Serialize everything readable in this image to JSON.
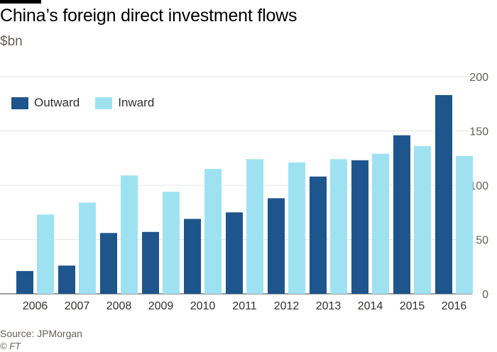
{
  "title": "China’s foreign direct investment flows",
  "subtitle": "$bn",
  "source": "Source: JPMorgan",
  "credit": "© FT",
  "colors": {
    "outward": "#1e558c",
    "inward": "#9ee2f2",
    "grid": "#e6e6e6",
    "axis": "#66605c"
  },
  "chart_data": {
    "type": "bar",
    "categories": [
      "2006",
      "2007",
      "2008",
      "2009",
      "2010",
      "2011",
      "2012",
      "2013",
      "2014",
      "2015",
      "2016"
    ],
    "series": [
      {
        "name": "Outward",
        "values": [
          21,
          26,
          56,
          57,
          69,
          75,
          88,
          108,
          123,
          146,
          183
        ]
      },
      {
        "name": "Inward",
        "values": [
          73,
          84,
          109,
          94,
          115,
          124,
          121,
          124,
          129,
          136,
          127
        ]
      }
    ],
    "yticks": [
      0,
      50,
      100,
      150,
      200
    ],
    "ylim": [
      0,
      200
    ],
    "grid": true,
    "legend_position": "top-left"
  }
}
